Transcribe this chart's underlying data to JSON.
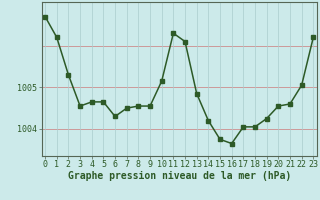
{
  "x": [
    0,
    1,
    2,
    3,
    4,
    5,
    6,
    7,
    8,
    9,
    10,
    11,
    12,
    13,
    14,
    15,
    16,
    17,
    18,
    19,
    20,
    21,
    22,
    23
  ],
  "y": [
    1006.7,
    1006.2,
    1005.3,
    1004.55,
    1004.65,
    1004.65,
    1004.3,
    1004.5,
    1004.55,
    1004.55,
    1005.15,
    1006.3,
    1006.1,
    1004.85,
    1004.2,
    1003.75,
    1003.65,
    1004.05,
    1004.05,
    1004.25,
    1004.55,
    1004.6,
    1005.05,
    1006.2
  ],
  "line_color": "#2d5a27",
  "marker_color": "#2d5a27",
  "bg_color": "#cceaea",
  "grid_color_h": "#cc9999",
  "grid_color_v": "#aacccc",
  "xlabel": "Graphe pression niveau de la mer (hPa)",
  "ytick_labels": [
    "1004",
    "1005"
  ],
  "ytick_values": [
    1004,
    1005
  ],
  "ylim": [
    1003.35,
    1007.05
  ],
  "xlim": [
    -0.3,
    23.3
  ],
  "xlabel_fontsize": 7,
  "tick_fontsize": 6
}
